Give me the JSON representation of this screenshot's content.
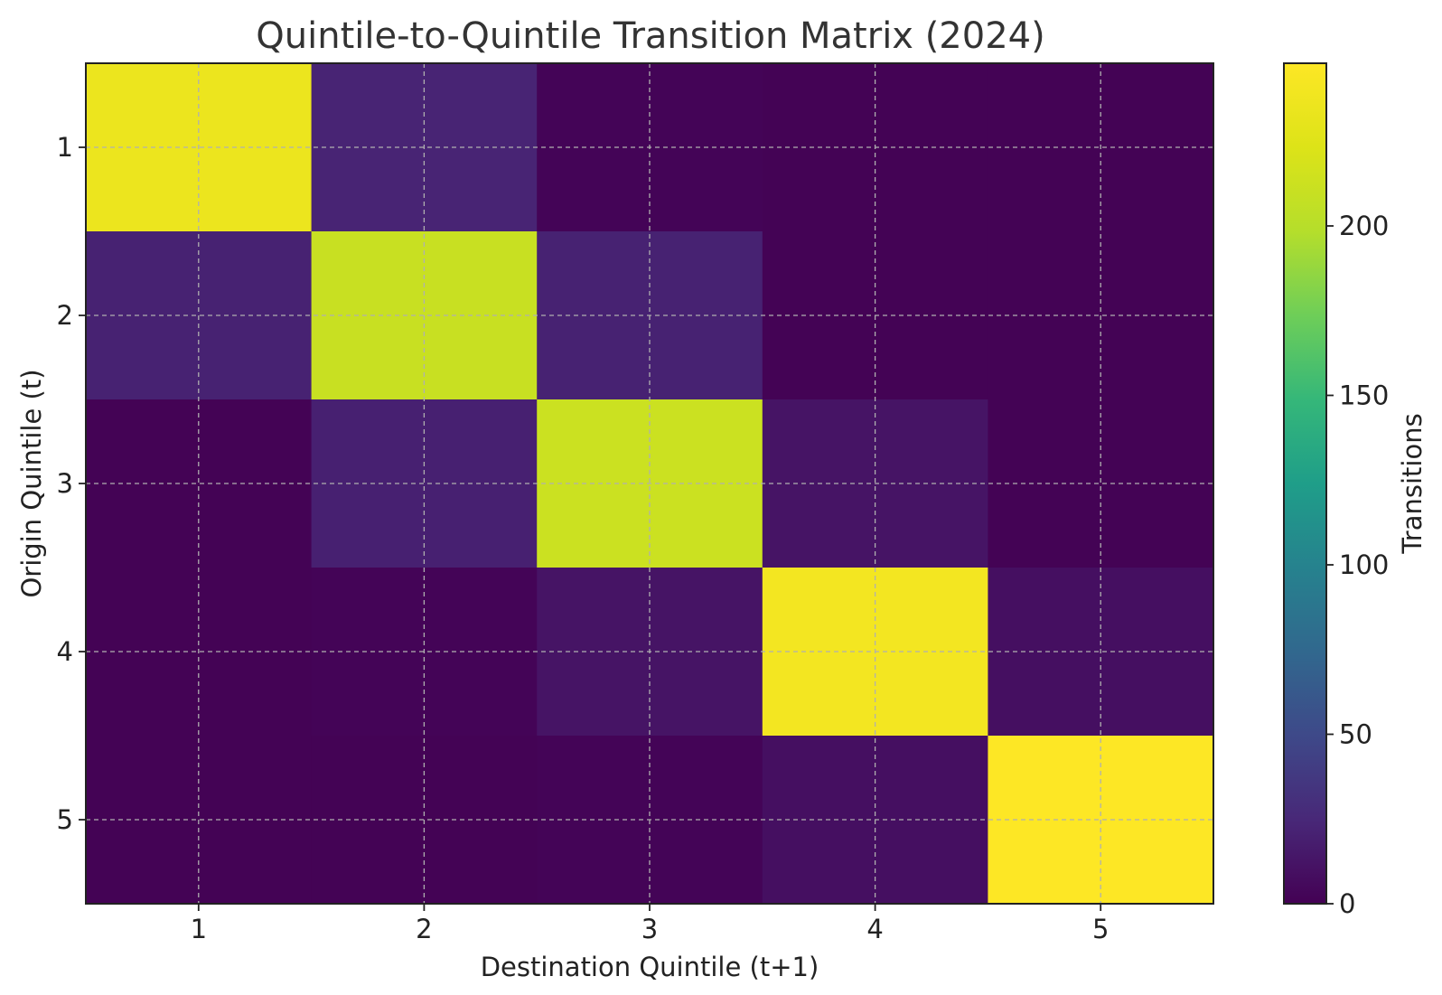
{
  "chart_data": {
    "type": "heatmap",
    "title": "Quintile-to-Quintile Transition Matrix (2024)",
    "xlabel": "Destination Quintile (t+1)",
    "ylabel": "Origin Quintile (t)",
    "x_categories": [
      "1",
      "2",
      "3",
      "4",
      "5"
    ],
    "y_categories": [
      "1",
      "2",
      "3",
      "4",
      "5"
    ],
    "values": [
      [
        235,
        22,
        2,
        1,
        1
      ],
      [
        21,
        210,
        21,
        1,
        1
      ],
      [
        1,
        20,
        212,
        12,
        1
      ],
      [
        1,
        2,
        12,
        240,
        9
      ],
      [
        1,
        1,
        2,
        9,
        248
      ]
    ],
    "colorscale": "viridis",
    "colorbar": {
      "label": "Transitions",
      "range": [
        0,
        248
      ],
      "ticks": [
        0,
        50,
        100,
        150,
        200
      ]
    },
    "grid": true
  }
}
